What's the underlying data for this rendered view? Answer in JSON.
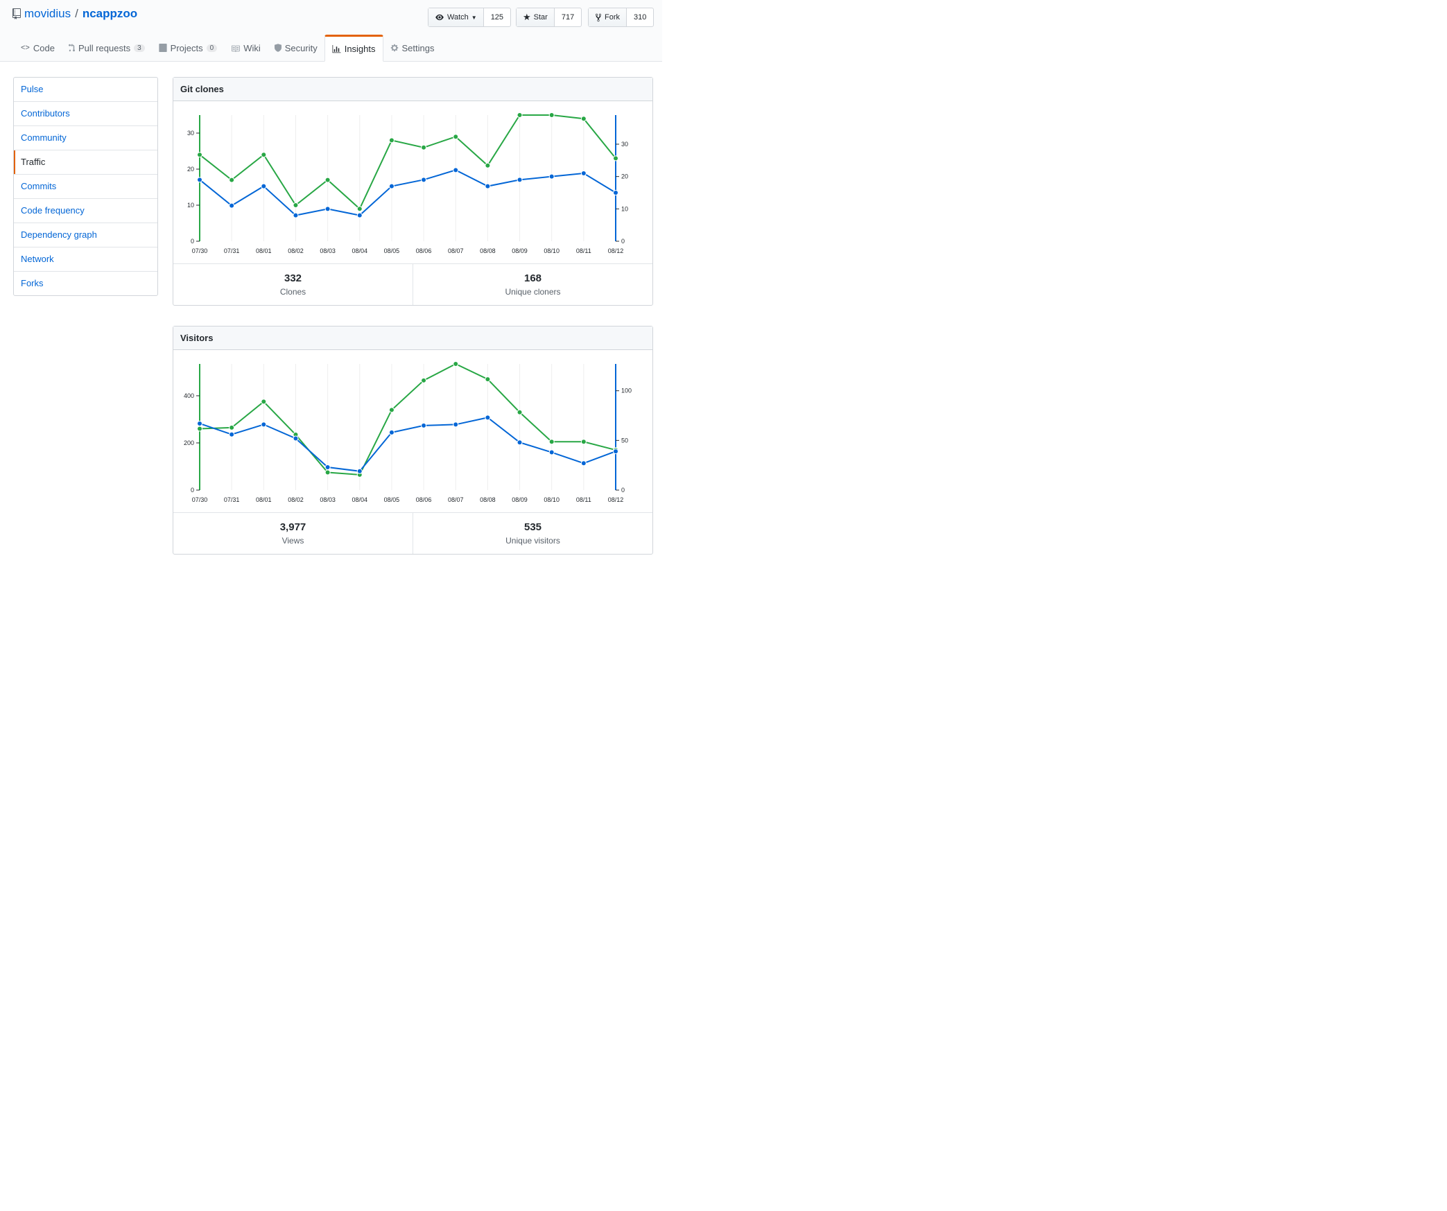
{
  "repo": {
    "owner": "movidius",
    "separator": "/",
    "name": "ncappzoo"
  },
  "social": {
    "watch": {
      "label": "Watch",
      "count": "125"
    },
    "star": {
      "label": "Star",
      "count": "717"
    },
    "fork": {
      "label": "Fork",
      "count": "310"
    }
  },
  "tabs": [
    {
      "label": "Code",
      "icon": "code-icon"
    },
    {
      "label": "Pull requests",
      "icon": "pull-request-icon",
      "counter": "3"
    },
    {
      "label": "Projects",
      "icon": "project-icon",
      "counter": "0"
    },
    {
      "label": "Wiki",
      "icon": "book-icon"
    },
    {
      "label": "Security",
      "icon": "shield-icon"
    },
    {
      "label": "Insights",
      "icon": "graph-icon",
      "selected": true
    },
    {
      "label": "Settings",
      "icon": "gear-icon"
    }
  ],
  "menu": {
    "items": [
      {
        "label": "Pulse"
      },
      {
        "label": "Contributors"
      },
      {
        "label": "Community"
      },
      {
        "label": "Traffic",
        "selected": true
      },
      {
        "label": "Commits"
      },
      {
        "label": "Code frequency"
      },
      {
        "label": "Dependency graph"
      },
      {
        "label": "Network"
      },
      {
        "label": "Forks"
      }
    ]
  },
  "colors": {
    "total": "#28a745",
    "unique": "#0366d6",
    "accent": "#e36209"
  },
  "clones": {
    "title": "Git clones",
    "total_value": "332",
    "total_label": "Clones",
    "unique_value": "168",
    "unique_label": "Unique cloners"
  },
  "visitors": {
    "title": "Visitors",
    "total_value": "3,977",
    "total_label": "Views",
    "unique_value": "535",
    "unique_label": "Unique visitors"
  },
  "chart_data": [
    {
      "type": "line",
      "title": "Git clones",
      "x": [
        "07/30",
        "07/31",
        "08/01",
        "08/02",
        "08/03",
        "08/04",
        "08/05",
        "08/06",
        "08/07",
        "08/08",
        "08/09",
        "08/10",
        "08/11",
        "08/12"
      ],
      "left_axis": {
        "ticks": [
          0,
          10,
          20,
          30
        ],
        "ylim": [
          0,
          35
        ],
        "color": "#28a745"
      },
      "right_axis": {
        "ticks": [
          0,
          10,
          20,
          30
        ],
        "ylim": [
          0,
          39
        ],
        "color": "#0366d6"
      },
      "series": [
        {
          "axis": "left",
          "color": "#28a745",
          "values": [
            24,
            17,
            24,
            10,
            17,
            9,
            28,
            26,
            29,
            21,
            35,
            35,
            34,
            23
          ]
        },
        {
          "axis": "right",
          "color": "#0366d6",
          "values": [
            19,
            11,
            17,
            8,
            10,
            8,
            17,
            19,
            22,
            17,
            19,
            20,
            21,
            15
          ]
        }
      ]
    },
    {
      "type": "line",
      "title": "Visitors",
      "x": [
        "07/30",
        "07/31",
        "08/01",
        "08/02",
        "08/03",
        "08/04",
        "08/05",
        "08/06",
        "08/07",
        "08/08",
        "08/09",
        "08/10",
        "08/11",
        "08/12"
      ],
      "left_axis": {
        "ticks": [
          0,
          200,
          400
        ],
        "ylim": [
          0,
          535
        ],
        "color": "#28a745"
      },
      "right_axis": {
        "ticks": [
          0,
          50,
          100
        ],
        "ylim": [
          0,
          127
        ],
        "color": "#0366d6"
      },
      "series": [
        {
          "axis": "left",
          "color": "#28a745",
          "values": [
            260,
            265,
            375,
            235,
            75,
            65,
            340,
            465,
            535,
            470,
            330,
            205,
            205,
            170
          ]
        },
        {
          "axis": "right",
          "color": "#0366d6",
          "values": [
            67,
            56,
            66,
            52,
            23,
            19,
            58,
            65,
            66,
            73,
            48,
            38,
            27,
            39
          ]
        }
      ]
    }
  ]
}
